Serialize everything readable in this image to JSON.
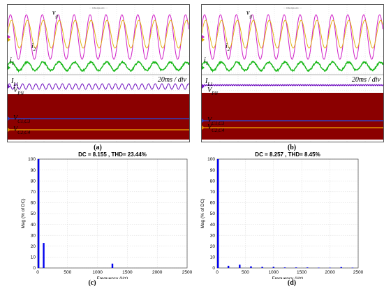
{
  "figure": {
    "top_left": {
      "label": "(a)",
      "header": "-- Measure --",
      "time_div": "20ms / div",
      "signals": {
        "vg": "vg",
        "i2": "i2",
        "i1": "i1",
        "iL1": "IL1",
        "vpn": "VPN",
        "vc1c3": "VC1,C3",
        "vc2c4": "VC2,C4"
      }
    },
    "top_right": {
      "label": "(b)",
      "header": "-- Measure --",
      "time_div": "20ms / div",
      "signals": {
        "vg": "vg",
        "i2": "i2",
        "i1": "i1",
        "iL1": "IL1",
        "vpn": "VPN",
        "vc1c3": "VC1,C3",
        "vc2c4": "VC2,C4"
      }
    },
    "bottom_left": {
      "label": "(c)"
    },
    "bottom_right": {
      "label": "(d)"
    }
  },
  "colors": {
    "vg": "#d020c8",
    "i2": "#e0b000",
    "i1": "#18b818",
    "iL1": "#7010c0",
    "vpn": "#8b0000",
    "vc_blue": "#3040c0",
    "vc_orange": "#e09000",
    "bar": "#0000ee"
  },
  "chart_data": [
    {
      "type": "bar",
      "title": "DC = 8.155 , THD= 23.44%",
      "xlabel": "Frequency (Hz)",
      "ylabel": "Mag (% of DC)",
      "xlim": [
        0,
        2500
      ],
      "ylim": [
        0,
        100
      ],
      "xticks": [
        0,
        500,
        1000,
        1500,
        2000,
        2500
      ],
      "yticks": [
        0,
        10,
        20,
        30,
        40,
        50,
        60,
        70,
        80,
        90,
        100
      ],
      "x": [
        0,
        100,
        1250
      ],
      "values": [
        100,
        23,
        4
      ]
    },
    {
      "type": "bar",
      "title": "DC = 8.257 , THD= 8.45%",
      "xlabel": "Frequency (Hz)",
      "ylabel": "Mag (% of DC)",
      "xlim": [
        0,
        2500
      ],
      "ylim": [
        0,
        100
      ],
      "xticks": [
        0,
        500,
        1000,
        1500,
        2000,
        2500
      ],
      "yticks": [
        0,
        10,
        20,
        30,
        40,
        50,
        60,
        70,
        80,
        90,
        100
      ],
      "x": [
        0,
        200,
        400,
        600,
        800,
        1000,
        1200,
        1400,
        1600,
        1800,
        2000,
        2200,
        2400
      ],
      "values": [
        100,
        2,
        3,
        1.5,
        1,
        1,
        0.5,
        0.5,
        0.5,
        0.3,
        0.3,
        0.8,
        0.3
      ]
    }
  ]
}
